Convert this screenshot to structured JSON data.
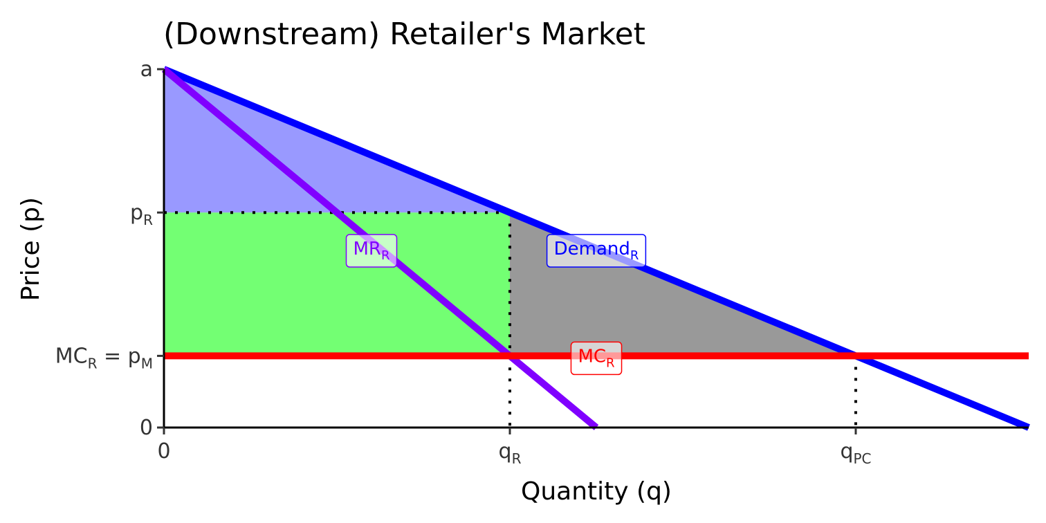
{
  "chart_data": {
    "type": "line",
    "title": "(Downstream) Retailer's Market",
    "xlabel": "Quantity (q)",
    "ylabel": "Price (p)",
    "xlim": [
      0,
      25
    ],
    "ylim": [
      0,
      10
    ],
    "x_ticks": [
      {
        "value": 0,
        "main": "0",
        "sub": ""
      },
      {
        "value": 10,
        "main": "q",
        "sub": "R"
      },
      {
        "value": 20,
        "main": "q",
        "sub": "PC"
      }
    ],
    "y_ticks": [
      {
        "value": 0,
        "main": "0",
        "sub": "",
        "tail": "",
        "tail_sub": ""
      },
      {
        "value": 2,
        "main": "MC",
        "sub": "R",
        "tail": " = p",
        "tail_sub": "M"
      },
      {
        "value": 6,
        "main": "p",
        "sub": "R",
        "tail": "",
        "tail_sub": ""
      },
      {
        "value": 10,
        "main": "a",
        "sub": "",
        "tail": "",
        "tail_sub": ""
      }
    ],
    "series": [
      {
        "main": "Demand",
        "sub": "R",
        "color": "#0000ff",
        "x": [
          0,
          25
        ],
        "y": [
          10,
          0
        ],
        "label_at": [
          12.5,
          5
        ]
      },
      {
        "main": "MR",
        "sub": "R",
        "color": "#8000ff",
        "x": [
          0,
          12.5
        ],
        "y": [
          10,
          0
        ],
        "label_at": [
          6,
          5
        ]
      },
      {
        "main": "MC",
        "sub": "R",
        "color": "#ff0000",
        "x": [
          0,
          25
        ],
        "y": [
          2,
          2
        ],
        "label_at": [
          12.5,
          2
        ]
      }
    ],
    "areas": [
      {
        "kind": "consumer-surplus",
        "color": "#0000ff",
        "opacity": 0.4,
        "points": [
          [
            0,
            10
          ],
          [
            0,
            6
          ],
          [
            10,
            6
          ]
        ]
      },
      {
        "kind": "producer-surplus",
        "color": "#00ff00",
        "opacity": 0.55,
        "points": [
          [
            0,
            6
          ],
          [
            10,
            6
          ],
          [
            10,
            2
          ],
          [
            0,
            2
          ]
        ]
      },
      {
        "kind": "deadweight-loss",
        "color": "#333333",
        "opacity": 0.5,
        "points": [
          [
            10,
            6
          ],
          [
            20,
            2
          ],
          [
            10,
            2
          ]
        ]
      }
    ],
    "guides": [
      {
        "points": [
          [
            0,
            6
          ],
          [
            10,
            6
          ]
        ]
      },
      {
        "points": [
          [
            10,
            6
          ],
          [
            10,
            0
          ]
        ]
      },
      {
        "points": [
          [
            20,
            2
          ],
          [
            20,
            0
          ]
        ]
      }
    ]
  }
}
